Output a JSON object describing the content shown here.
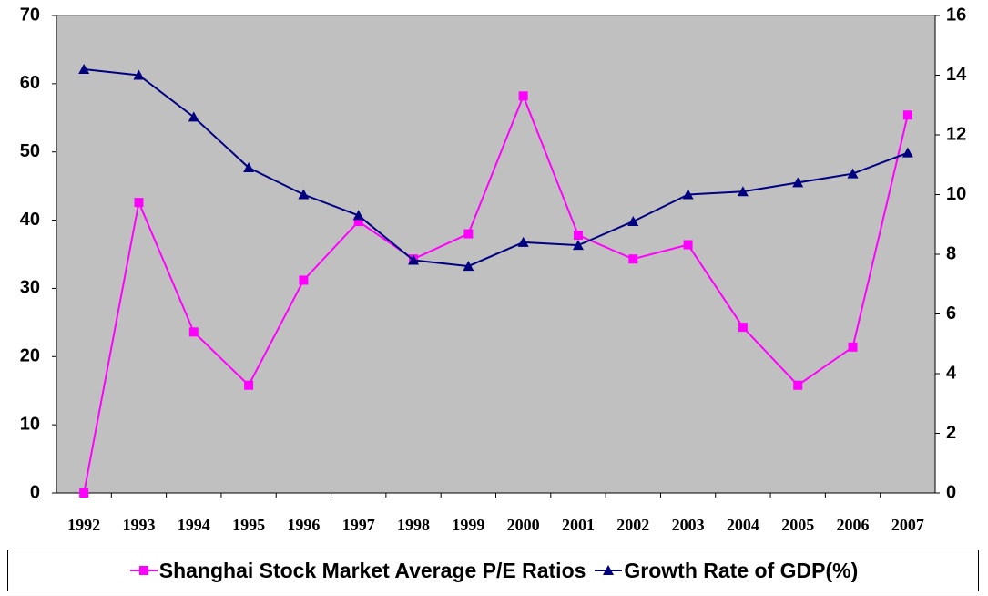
{
  "chart_data": {
    "type": "line",
    "categories": [
      "1992",
      "1993",
      "1994",
      "1995",
      "1996",
      "1997",
      "1998",
      "1999",
      "2000",
      "2001",
      "2002",
      "2003",
      "2004",
      "2005",
      "2006",
      "2007"
    ],
    "series": [
      {
        "name": "Shanghai Stock Market Average P/E Ratios",
        "color": "#ff00ff",
        "marker": "square",
        "values": [
          0,
          42.6,
          23.6,
          15.8,
          31.2,
          39.8,
          34.3,
          38.0,
          58.2,
          37.8,
          34.3,
          36.4,
          24.3,
          15.8,
          21.4,
          55.4
        ]
      },
      {
        "name": "Growth Rate of GDP(%)",
        "color": "#000080",
        "marker": "triangle",
        "axis": "y2",
        "values": [
          14.2,
          14.0,
          12.6,
          10.9,
          10.0,
          9.3,
          7.8,
          7.6,
          8.4,
          8.3,
          9.1,
          10.0,
          10.1,
          10.4,
          10.7,
          11.4
        ]
      }
    ],
    "ylim": [
      0,
      70
    ],
    "yticks": [
      0,
      10,
      20,
      30,
      40,
      50,
      60,
      70
    ],
    "y2lim": [
      0,
      16
    ],
    "y2ticks": [
      0,
      2,
      4,
      6,
      8,
      10,
      12,
      14,
      16
    ],
    "grid": false,
    "legend": "bottom",
    "plot_background": "#c0c0c0"
  }
}
